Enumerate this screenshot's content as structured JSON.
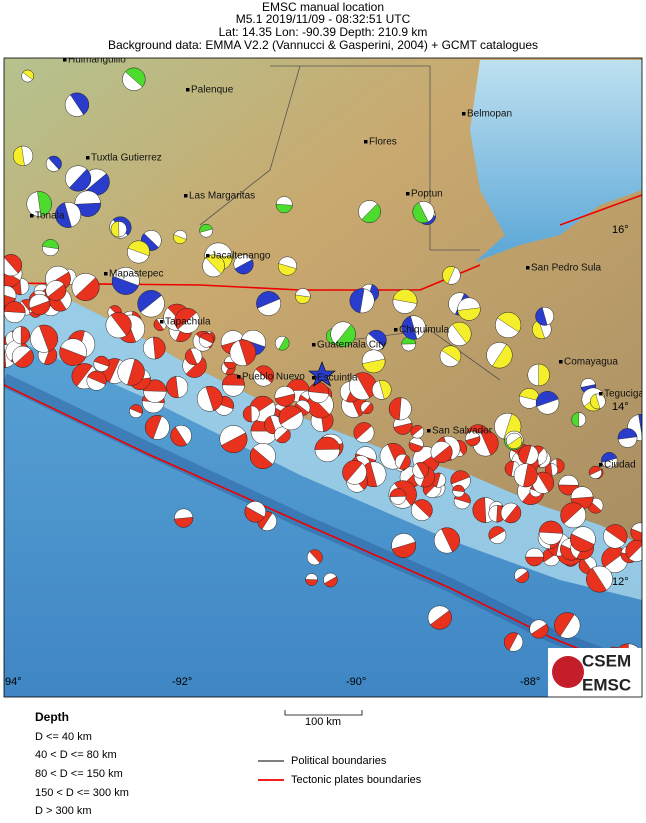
{
  "header": {
    "title": "EMSC manual location",
    "event": "M5.1  2019/11/09 - 08:32:51 UTC",
    "location": "Lat: 14.35    Lon: -90.39       Depth: 210.9 km",
    "source": "Background data: EMMA V2.2 (Vannucci & Gasperini, 2004) + GCMT catalogues"
  },
  "map": {
    "places": [
      "Huimanguillo",
      "Palenque",
      "Belmopan",
      "Tuxtla Gutierrez",
      "Flores",
      "Las Margaritas",
      "Poptun",
      "Tonala",
      "Jacaltenango",
      "Mapastepec",
      "San Pedro Sula",
      "Tapachula",
      "Chiquimula",
      "Guatemala City",
      "Comayagua",
      "Pueblo Nuevo",
      "Escuintla",
      "Tegucigalpa",
      "San Salvador",
      "Ciudad"
    ],
    "lon_labels": [
      "94°",
      "-92°",
      "-90°",
      "-88°"
    ],
    "lat_labels": [
      "16°",
      "14°",
      "12°"
    ],
    "logo": [
      "CSEM",
      "EMSC"
    ]
  },
  "legend": {
    "title": "Depth",
    "depth_classes": [
      "D <= 40 km",
      "40 < D <= 80 km",
      "80 < D <= 150 km",
      "150 < D <= 300 km",
      "D > 300 km"
    ],
    "scale": "100 km",
    "lines": [
      "Political boundaries",
      "Tectonic plates boundaries"
    ]
  }
}
